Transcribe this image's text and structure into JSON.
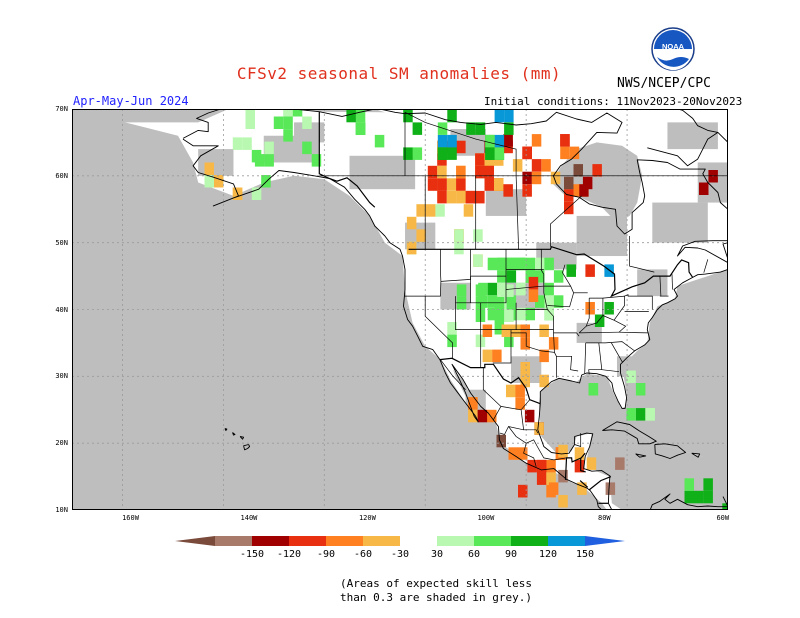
{
  "header": {
    "title": "CFSv2 seasonal SM anomalies (mm)",
    "org": "NWS/NCEP/CPC",
    "season": "Apr-May-Jun 2024",
    "initial_conditions": "Initial conditions: 11Nov2023-20Nov2023",
    "logo_text": "NOAA"
  },
  "axes": {
    "lat_labels": [
      "70N",
      "60N",
      "50N",
      "40N",
      "30N",
      "20N",
      "10N"
    ],
    "lon_labels": [
      "160W",
      "140W",
      "120W",
      "100W",
      "80W",
      "60W"
    ]
  },
  "legend": {
    "labels": [
      "-150",
      "-120",
      "-90",
      "-60",
      "-30",
      "30",
      "60",
      "90",
      "120",
      "150"
    ],
    "colors": [
      "#7a4a3a",
      "#a87a6a",
      "#a00000",
      "#e83010",
      "#ff8020",
      "#f8b848",
      "#ffffff",
      "#b8f8b0",
      "#58e858",
      "#10b018",
      "#0898d8",
      "#2060e0"
    ],
    "note_line1": "(Areas of expected skill less",
    "note_line2": "than 0.3 are shaded in grey.)"
  },
  "colors": {
    "masked_grey": "#bebebe",
    "title_red": "#e0301e",
    "season_blue": "#2222ff"
  }
}
